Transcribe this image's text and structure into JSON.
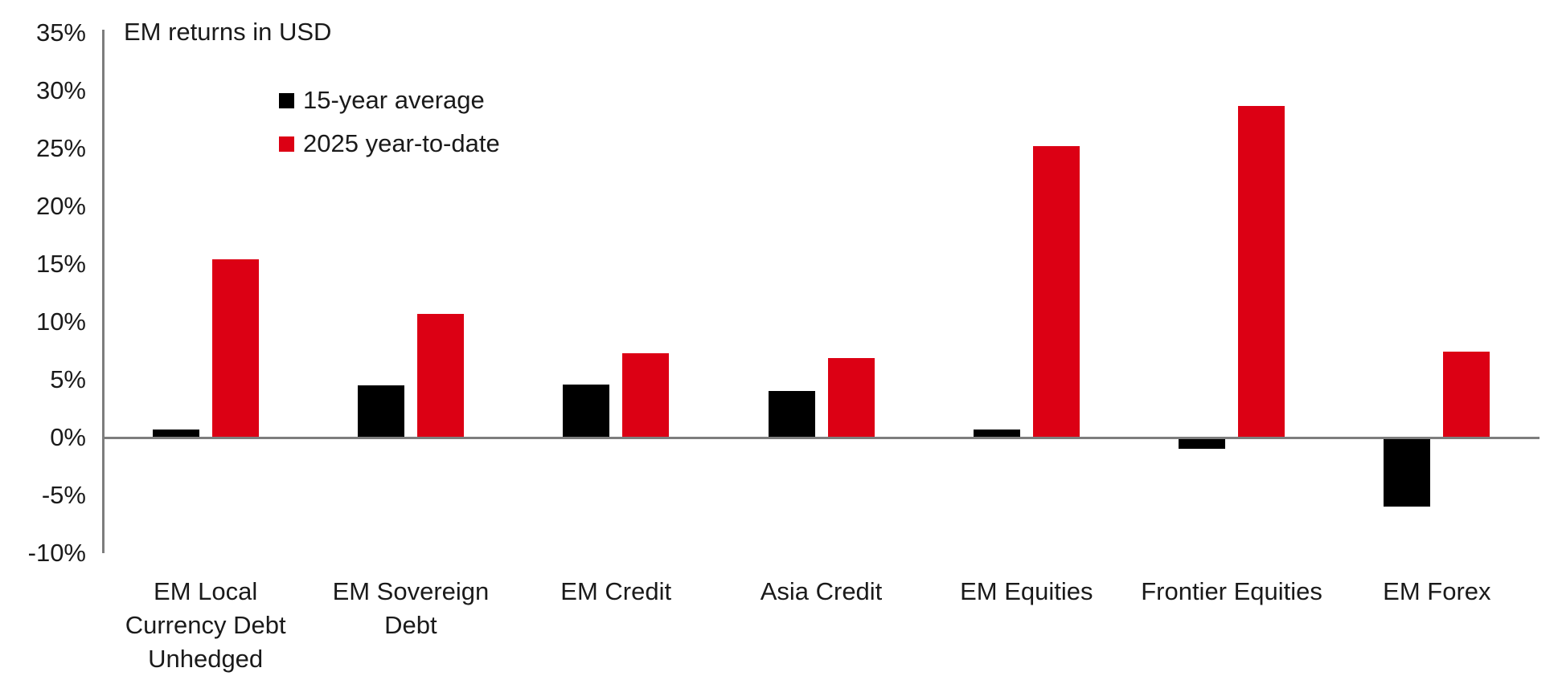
{
  "chart": {
    "background": "#ffffff",
    "axis_color": "#7d7d7d",
    "text_color": "#1a1a1a"
  },
  "chart_data": {
    "type": "bar",
    "title": "EM returns in USD",
    "xlabel": "",
    "ylabel": "",
    "unit": "%",
    "ylim": [
      -10,
      35
    ],
    "ytick_step": 5,
    "yticks": [
      "35%",
      "30%",
      "25%",
      "20%",
      "15%",
      "10%",
      "5%",
      "0%",
      "-5%",
      "-10%"
    ],
    "grid": false,
    "legend_position": "top-left-inside",
    "categories": [
      "EM Local Currency Debt Unhedged",
      "EM Sovereign Debt",
      "EM Credit",
      "Asia Credit",
      "EM Equities",
      "Frontier Equities",
      "EM Forex"
    ],
    "category_display_lines": [
      [
        "EM Local",
        "Currency Debt",
        "Unhedged"
      ],
      [
        "EM Sovereign",
        "Debt"
      ],
      [
        "EM Credit"
      ],
      [
        "Asia Credit"
      ],
      [
        "EM Equities"
      ],
      [
        "Frontier Equities"
      ],
      [
        "EM Forex"
      ]
    ],
    "series": [
      {
        "name": "15-year average",
        "color": "#000000",
        "values": [
          0.7,
          4.5,
          4.6,
          4.0,
          0.7,
          -0.9,
          -5.9
        ]
      },
      {
        "name": "2025 year-to-date",
        "color": "#dc0014",
        "values": [
          15.4,
          10.7,
          7.3,
          6.9,
          25.2,
          28.7,
          7.4
        ]
      }
    ]
  }
}
